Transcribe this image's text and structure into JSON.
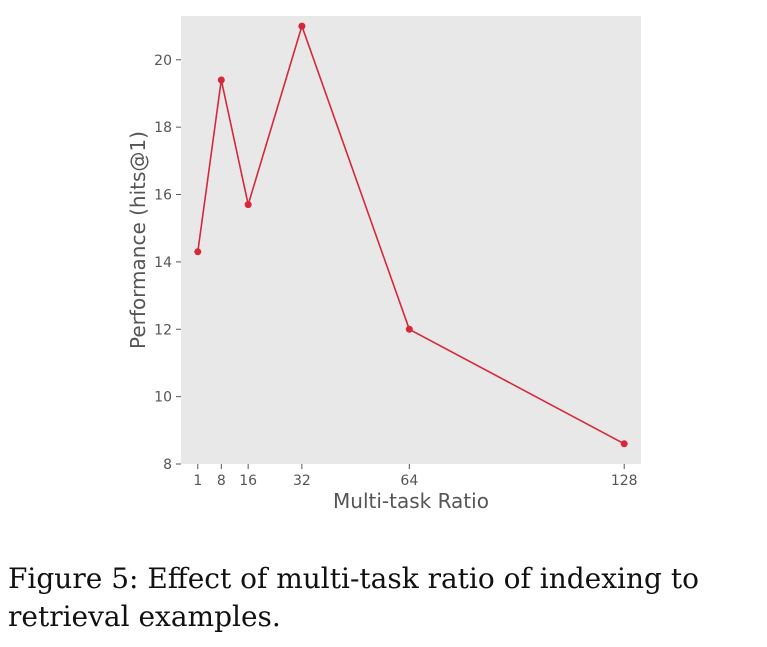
{
  "chart_data": {
    "type": "line",
    "title": "",
    "xlabel": "Multi-task Ratio",
    "ylabel": "Performance (hits@1)",
    "x": [
      1,
      8,
      16,
      32,
      64,
      128
    ],
    "series": [
      {
        "values": [
          14.3,
          19.4,
          15.7,
          21.0,
          12.0,
          8.6
        ]
      }
    ],
    "xticks": [
      1,
      8,
      16,
      32,
      64,
      128
    ],
    "xtick_labels": [
      "1",
      "8",
      "16",
      "32",
      "64",
      "128"
    ],
    "yticks": [
      8,
      10,
      12,
      14,
      16,
      18,
      20
    ],
    "ytick_labels": [
      "8",
      "10",
      "12",
      "14",
      "16",
      "18",
      "20"
    ],
    "xlim": [
      -4,
      133
    ],
    "ylim": [
      8,
      21.3
    ],
    "grid": false,
    "colors": {
      "line": "#d62839",
      "marker": "#d62839",
      "plot_background": "#e8e8e8"
    }
  },
  "caption": {
    "label": "Figure 5:",
    "text": "Effect of multi-task ratio of indexing to retrieval examples."
  }
}
